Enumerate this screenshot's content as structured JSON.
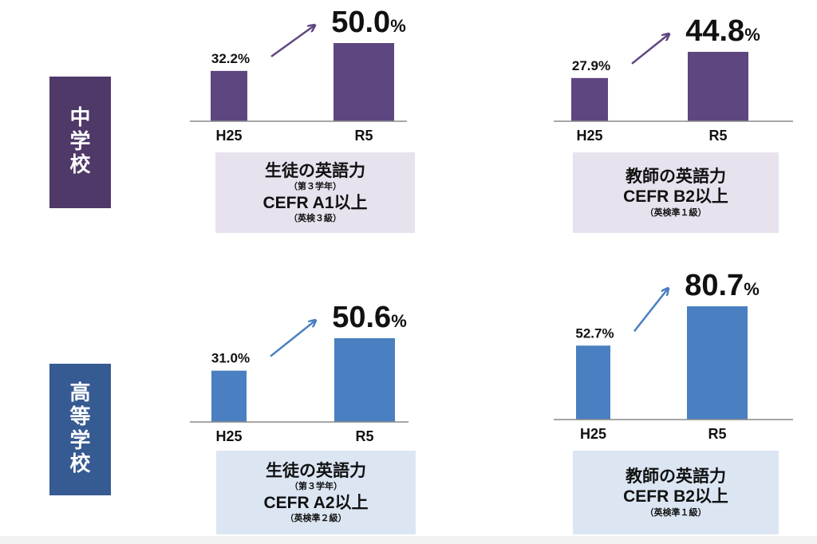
{
  "colors": {
    "middle_school": "#4f3968",
    "middle_bar": "#5e4680",
    "middle_caption_bg": "#e7e2ee",
    "high_school": "#365a92",
    "high_bar": "#4a7fc1",
    "high_caption_bg": "#dce6f3",
    "axis": "#8a8a8a",
    "text": "#111111"
  },
  "sections": {
    "middle_school": {
      "label": "中学校"
    },
    "high_school": {
      "label": "高等学校"
    }
  },
  "captions": {
    "ms_students": {
      "line1": "生徒の英語力",
      "line2": "（第３学年）",
      "line3": "CEFR A1以上",
      "line4": "（英検３級）"
    },
    "ms_teachers": {
      "line1": "教師の英語力",
      "line2": "",
      "line3": "CEFR B2以上",
      "line4": "（英検準１級）"
    },
    "hs_students": {
      "line1": "生徒の英語力",
      "line2": "（第３学年）",
      "line3": "CEFR A2以上",
      "line4": "（英検準２級）"
    },
    "hs_teachers": {
      "line1": "教師の英語力",
      "line2": "",
      "line3": "CEFR B2以上",
      "line4": "（英検準１級）"
    }
  },
  "chart_data": [
    {
      "type": "bar",
      "group": "中学校",
      "categories": [
        "H25",
        "R5"
      ],
      "values": [
        32.2,
        50.0
      ],
      "data_labels": [
        "32.2%",
        "50.0"
      ],
      "unit": "%",
      "ylim": [
        0,
        60
      ],
      "grid": false
    },
    {
      "type": "bar",
      "group": "中学校",
      "categories": [
        "H25",
        "R5"
      ],
      "values": [
        27.9,
        44.8
      ],
      "data_labels": [
        "27.9%",
        "44.8"
      ],
      "unit": "%",
      "ylim": [
        0,
        60
      ],
      "grid": false
    },
    {
      "type": "bar",
      "group": "高等学校",
      "categories": [
        "H25",
        "R5"
      ],
      "values": [
        31.0,
        50.6
      ],
      "data_labels": [
        "31.0%",
        "50.6"
      ],
      "unit": "%",
      "ylim": [
        0,
        60
      ],
      "grid": false
    },
    {
      "type": "bar",
      "group": "高等学校",
      "categories": [
        "H25",
        "R5"
      ],
      "values": [
        52.7,
        80.7
      ],
      "data_labels": [
        "52.7%",
        "80.7"
      ],
      "unit": "%",
      "ylim": [
        0,
        90
      ],
      "grid": false
    }
  ]
}
